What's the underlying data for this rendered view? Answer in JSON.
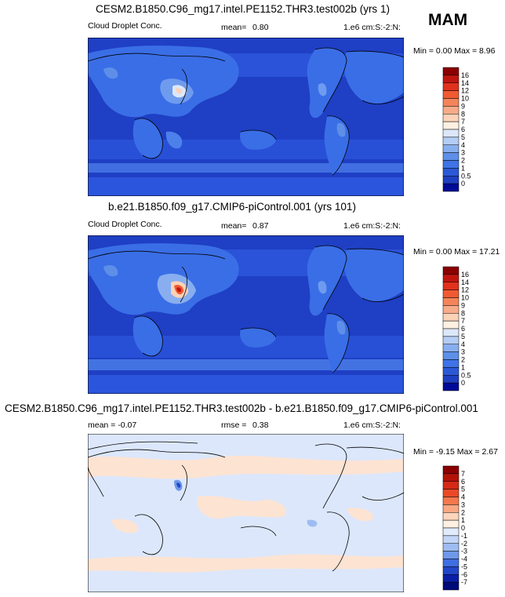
{
  "season": "MAM",
  "panels": [
    {
      "title": "CESM2.B1850.C96_mg17.intel.PE1152.THR3.test002b (yrs 1)",
      "left_label": "Cloud Droplet Conc.",
      "center_label": "mean=",
      "center_value": "0.80",
      "units": "1.e6 cm:S:-2:N:",
      "minmax": "Min =   0.00 Max =   8.96",
      "colorbar": {
        "labels": [
          "16",
          "14",
          "12",
          "10",
          "9",
          "8",
          "7",
          "6",
          "5",
          "4",
          "3",
          "2",
          "1",
          "0.5",
          "0"
        ],
        "colors": [
          "#8b0000",
          "#c0150f",
          "#e0321c",
          "#f05a32",
          "#f4845a",
          "#f8ab88",
          "#fcd2b8",
          "#fff0e2",
          "#dce8fa",
          "#b4cdf5",
          "#88aef0",
          "#5d8fe8",
          "#3f73e6",
          "#2c58d6",
          "#1e3fbf",
          "#000a96"
        ]
      }
    },
    {
      "title": "b.e21.B1850.f09_g17.CMIP6-piControl.001 (yrs 101)",
      "left_label": "Cloud Droplet Conc.",
      "center_label": "mean=",
      "center_value": "0.87",
      "units": "1.e6 cm:S:-2:N:",
      "minmax": "Min =   0.00 Max =  17.21",
      "colorbar": {
        "labels": [
          "16",
          "14",
          "12",
          "10",
          "9",
          "8",
          "7",
          "6",
          "5",
          "4",
          "3",
          "2",
          "1",
          "0.5",
          "0"
        ],
        "colors": [
          "#8b0000",
          "#c0150f",
          "#e0321c",
          "#f05a32",
          "#f4845a",
          "#f8ab88",
          "#fcd2b8",
          "#fff0e2",
          "#dce8fa",
          "#b4cdf5",
          "#88aef0",
          "#5d8fe8",
          "#3f73e6",
          "#2c58d6",
          "#1e3fbf",
          "#000a96"
        ]
      }
    },
    {
      "title": "CESM2.B1850.C96_mg17.intel.PE1152.THR3.test002b - b.e21.B1850.f09_g17.CMIP6-piControl.001",
      "left_label": "mean =  -0.07",
      "center_label": "rmse =",
      "center_value": "0.38",
      "units": "1.e6 cm:S:-2:N:",
      "minmax": "Min =  -9.15 Max =   2.67",
      "colorbar": {
        "labels": [
          "7",
          "6",
          "5",
          "4",
          "3",
          "2",
          "1",
          "0",
          "-1",
          "-2",
          "-3",
          "-4",
          "-5",
          "-6",
          "-7"
        ],
        "colors": [
          "#8b0000",
          "#b41208",
          "#d42a16",
          "#ea4a28",
          "#f4784e",
          "#f9a882",
          "#fdd5bc",
          "#fff0e2",
          "#e0ebfc",
          "#c2d6f8",
          "#9dbcf2",
          "#6f98ea",
          "#3f6ee0",
          "#2146c6",
          "#0a1fa6",
          "#000a78"
        ]
      }
    }
  ],
  "colors": {
    "ocean_deep": "#1f3fc4",
    "ocean_mid": "#2e5ae0",
    "land_high": "#3f75ea",
    "diff_bg": "#d9e6fb",
    "diff_pos": "#fde3d2"
  }
}
